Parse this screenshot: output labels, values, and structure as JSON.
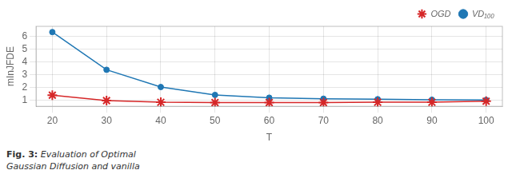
{
  "chart_data": {
    "type": "line",
    "x": [
      20,
      30,
      40,
      50,
      60,
      70,
      80,
      90,
      100
    ],
    "series": [
      {
        "name": "OGD",
        "color": "#d62728",
        "marker": "star",
        "values": [
          1.38,
          0.95,
          0.82,
          0.8,
          0.8,
          0.8,
          0.82,
          0.82,
          0.9
        ]
      },
      {
        "name": "VD₁₀₀",
        "color": "#1f77b4",
        "marker": "circle",
        "values": [
          6.35,
          3.38,
          2.02,
          1.4,
          1.18,
          1.1,
          1.06,
          1.02,
          1.0
        ]
      }
    ],
    "xlabel": "T",
    "ylabel": "mInJFDE",
    "xlim": [
      17,
      103
    ],
    "xticks": [
      20,
      30,
      40,
      50,
      60,
      70,
      80,
      90,
      100
    ],
    "ylim": [
      0.5,
      6.8
    ],
    "yticks": [
      1,
      2,
      3,
      4,
      5,
      6
    ],
    "grid": true,
    "legend": "upper right",
    "annotations": [
      "Fig. 3:",
      "Evaluation of Optimal",
      "Gaussian Diffusion and vanilla"
    ]
  }
}
